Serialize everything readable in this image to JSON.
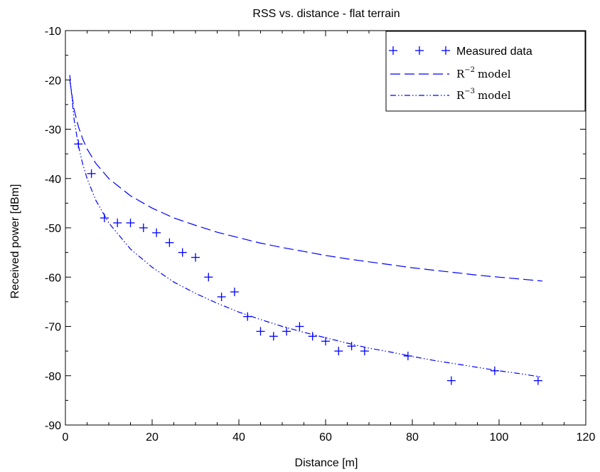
{
  "chart_data": {
    "type": "scatter",
    "title": "RSS vs. distance - flat terrain",
    "xlabel": "Distance [m]",
    "ylabel": "Received power [dBm]",
    "xlim": [
      0,
      120
    ],
    "ylim": [
      -90,
      -10
    ],
    "xticks": [
      0,
      20,
      40,
      60,
      80,
      100,
      120
    ],
    "yticks": [
      -90,
      -80,
      -70,
      -60,
      -50,
      -40,
      -30,
      -20,
      -10
    ],
    "x_tick_labels": [
      "0",
      "20",
      "40",
      "60",
      "80",
      "100",
      "120"
    ],
    "y_tick_labels": [
      "-90",
      "-80",
      "-70",
      "-60",
      "-50",
      "-40",
      "-30",
      "-20",
      "-10"
    ],
    "grid": false,
    "legend_position": "top-right",
    "series": [
      {
        "name": "Measured data",
        "kind": "markers",
        "marker": "plus",
        "color": "#0000ff",
        "x": [
          3,
          6,
          9,
          12,
          15,
          18,
          21,
          24,
          27,
          30,
          33,
          36,
          39,
          42,
          45,
          48,
          51,
          54,
          57,
          60,
          63,
          66,
          69,
          79,
          89,
          99,
          109
        ],
        "y": [
          -33,
          -39,
          -48,
          -49,
          -49,
          -50,
          -51,
          -53,
          -55,
          -56,
          -60,
          -64,
          -63,
          -68,
          -71,
          -72,
          -71,
          -70,
          -72,
          -73,
          -75,
          -74,
          -75,
          -76,
          -81,
          -79,
          -81
        ]
      },
      {
        "name_base": "R",
        "name_exp": "−2",
        "name_suffix": "model",
        "kind": "line",
        "dash": "dashed",
        "color": "#0000ff",
        "x": [
          1,
          2,
          3,
          4,
          5,
          7,
          10,
          15,
          20,
          25,
          30,
          35,
          40,
          45,
          50,
          55,
          60,
          65,
          70,
          75,
          80,
          85,
          90,
          95,
          100,
          105,
          110
        ],
        "y": [
          -20.0,
          -26.0,
          -29.5,
          -32.0,
          -34.0,
          -36.9,
          -40.0,
          -43.5,
          -46.0,
          -48.0,
          -49.5,
          -50.9,
          -52.0,
          -53.1,
          -54.0,
          -54.8,
          -55.6,
          -56.3,
          -56.9,
          -57.5,
          -58.1,
          -58.6,
          -59.1,
          -59.6,
          -60.0,
          -60.4,
          -60.8
        ]
      },
      {
        "name_base": "R",
        "name_exp": "−3",
        "name_suffix": "model",
        "kind": "line",
        "dash": "dash-dot-dot",
        "color": "#0000ff",
        "x": [
          1,
          2,
          3,
          4,
          5,
          7,
          10,
          15,
          20,
          25,
          30,
          35,
          40,
          45,
          50,
          55,
          60,
          65,
          70,
          75,
          80,
          85,
          90,
          95,
          100,
          105,
          110
        ],
        "y": [
          -19.0,
          -28.0,
          -33.3,
          -37.1,
          -40.0,
          -44.4,
          -49.0,
          -54.3,
          -58.0,
          -61.0,
          -63.3,
          -65.3,
          -67.1,
          -68.6,
          -70.0,
          -71.2,
          -72.3,
          -73.4,
          -74.4,
          -75.2,
          -76.1,
          -76.9,
          -77.6,
          -78.3,
          -79.0,
          -79.6,
          -80.3
        ]
      }
    ]
  }
}
